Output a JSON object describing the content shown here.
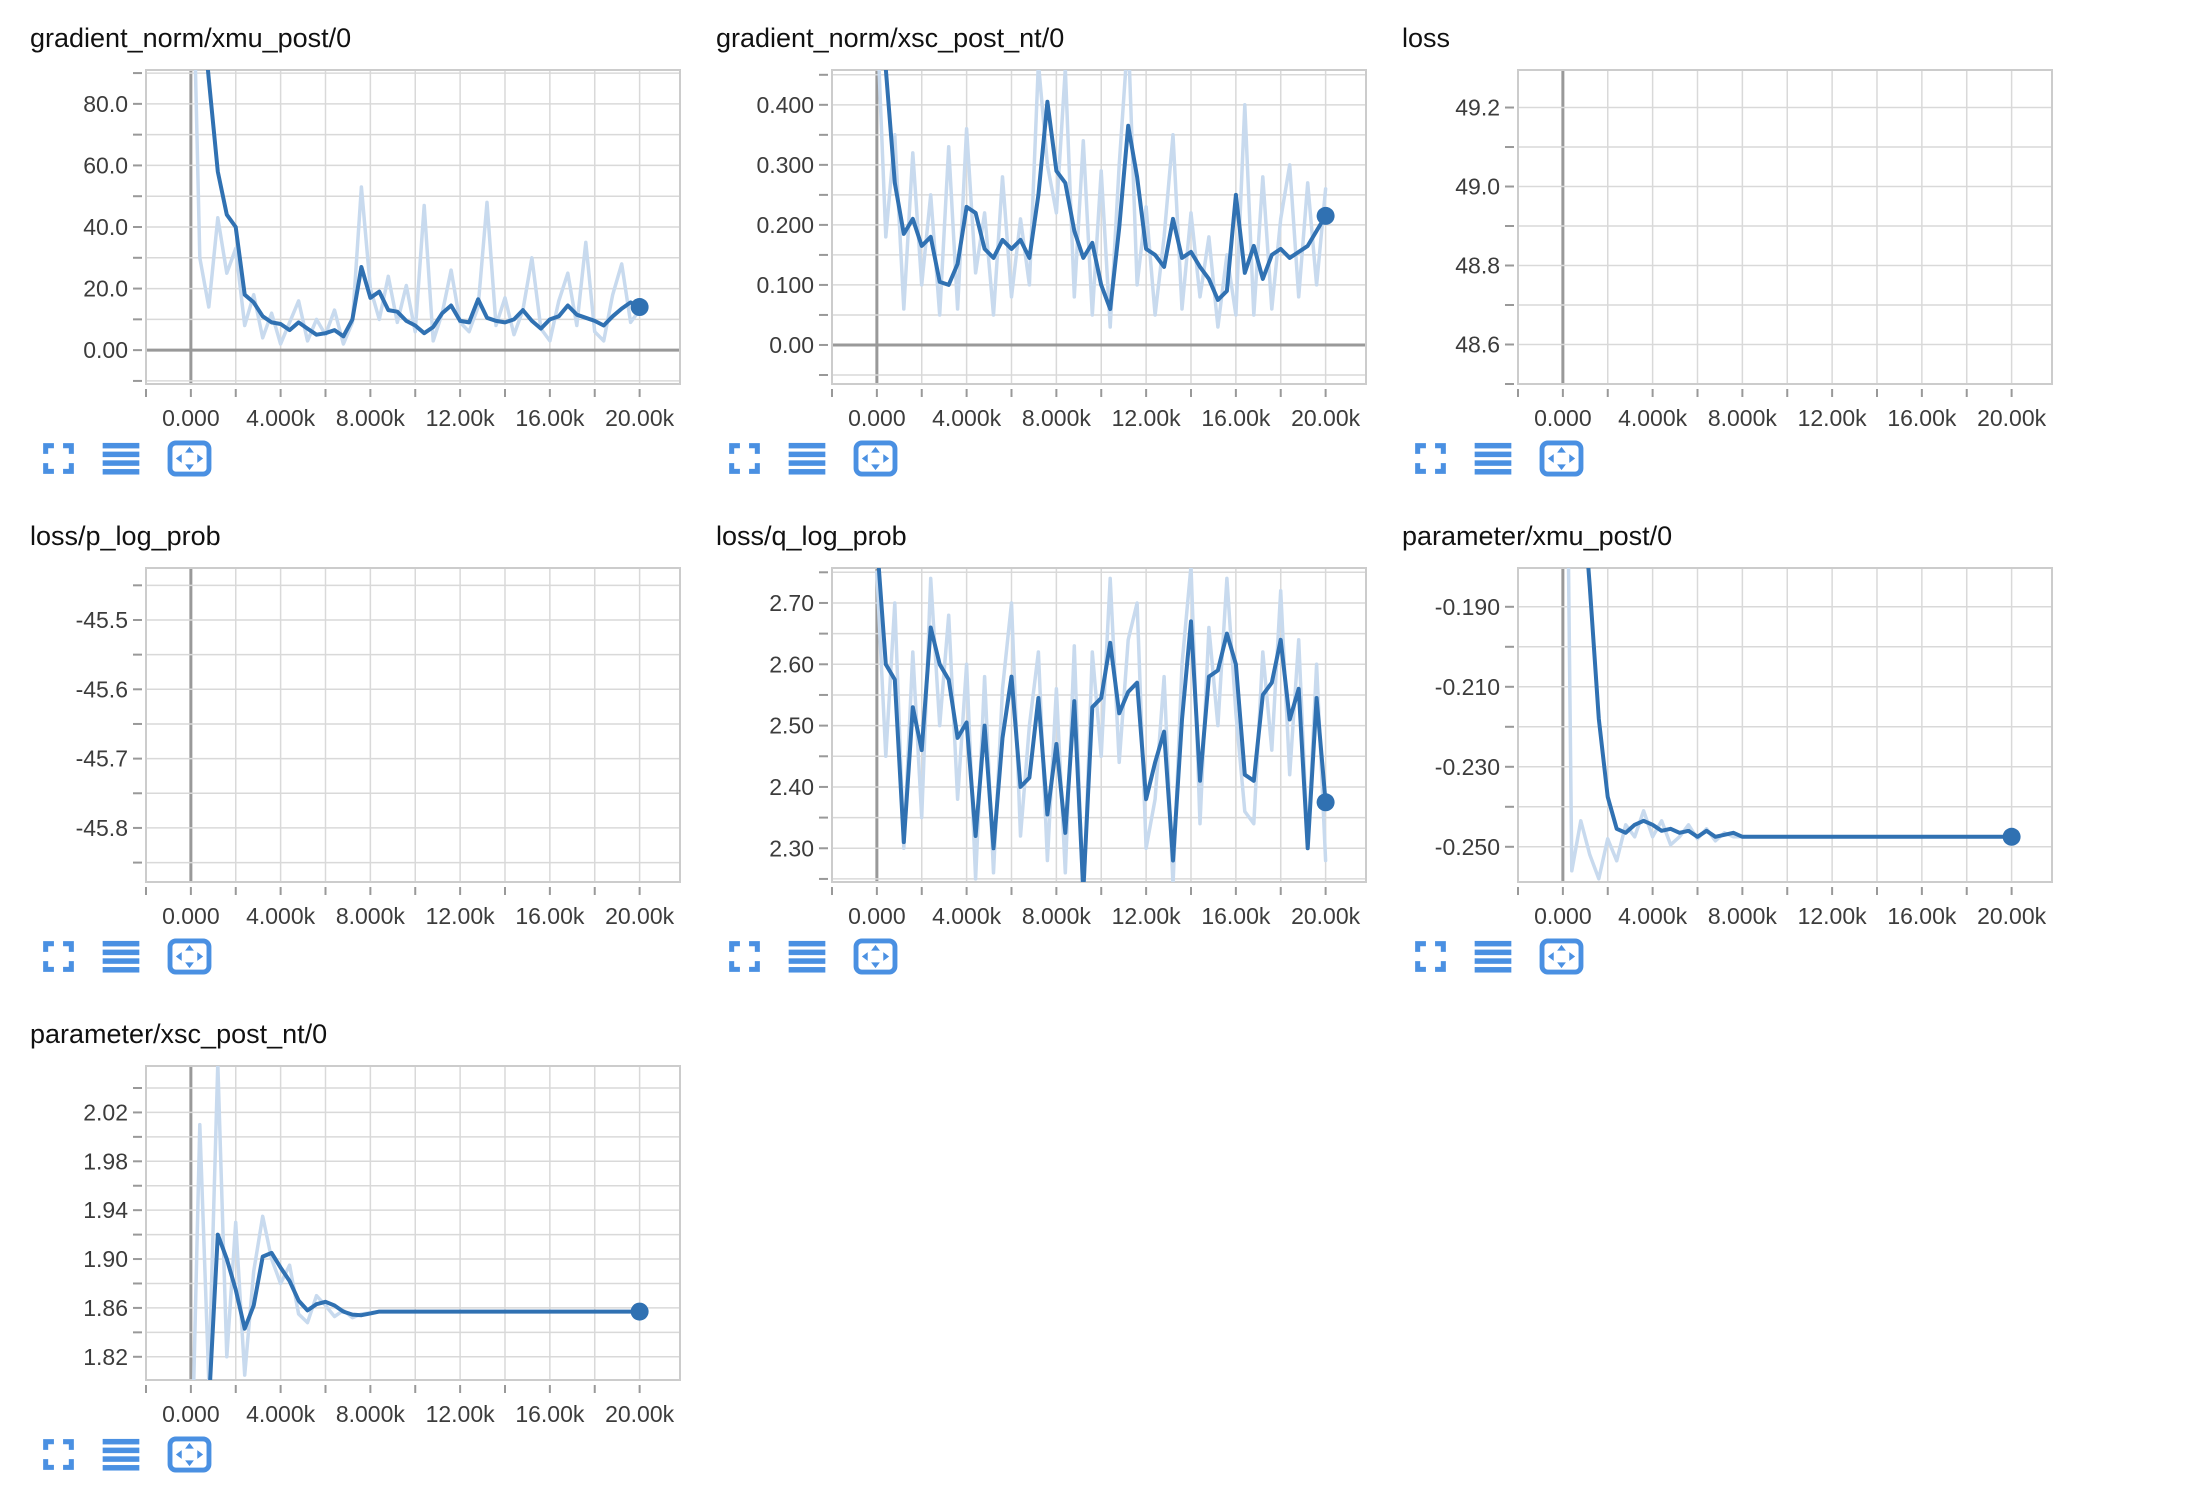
{
  "colors": {
    "smoothed_line": "#3071b2",
    "raw_line": "#c8daee",
    "grid": "#d9d9d9",
    "border": "#cccccc",
    "zero_axis": "#999999",
    "tick": "#999999",
    "tick_label": "#3c3c3c",
    "title_text": "#111111",
    "icon_blue": "#4a90e2",
    "background": "#ffffff"
  },
  "x_axis": {
    "domain": [
      -2000,
      21800
    ],
    "grid_step": 2000,
    "ticks": [
      {
        "v": 0,
        "label": "0.000"
      },
      {
        "v": 4000,
        "label": "4.000k"
      },
      {
        "v": 8000,
        "label": "8.000k"
      },
      {
        "v": 12000,
        "label": "12.00k"
      },
      {
        "v": 16000,
        "label": "16.00k"
      },
      {
        "v": 20000,
        "label": "20.00k"
      }
    ]
  },
  "chart_footer": {
    "icons": [
      {
        "name": "fullscreen-icon"
      },
      {
        "name": "horizontal-lines-icon"
      },
      {
        "name": "fit-domain-icon"
      }
    ]
  },
  "chart_data": [
    {
      "type": "line",
      "title": "gradient_norm/xmu_post/0",
      "xlabel": "",
      "ylabel": "",
      "x": {
        "start": 0,
        "step": 400
      },
      "y_domain": [
        -11,
        91
      ],
      "y_minor_step": 10,
      "zero_y_line": true,
      "end_dot": true,
      "y_ticks": [
        {
          "v": 0,
          "label": "0.00"
        },
        {
          "v": 20,
          "label": "20.0"
        },
        {
          "v": 40,
          "label": "40.0"
        },
        {
          "v": 60,
          "label": "60.0"
        },
        {
          "v": 80,
          "label": "80.0"
        }
      ],
      "series": [
        {
          "name": "raw",
          "values": [
            155,
            30,
            14,
            43,
            25,
            33,
            8,
            18,
            4,
            12,
            2,
            9,
            16,
            3,
            10,
            5,
            13,
            2,
            9,
            53,
            20,
            10,
            24,
            9,
            21,
            6,
            47,
            3,
            12,
            26,
            9,
            6,
            14,
            48,
            8,
            17,
            5,
            13,
            30,
            7,
            3,
            16,
            25,
            8,
            35,
            6,
            3,
            18,
            28,
            9,
            13
          ]
        },
        {
          "name": "smoothed",
          "values": [
            170,
            120,
            88,
            58,
            44,
            40,
            18,
            15.5,
            11,
            9,
            8.5,
            6.5,
            9,
            7,
            5,
            5.5,
            6.5,
            4.5,
            10,
            27,
            17,
            19,
            13,
            12.5,
            9.5,
            8,
            5.5,
            7.5,
            12,
            14.5,
            9.5,
            9,
            16.5,
            10.5,
            9.5,
            9,
            10,
            13,
            9.5,
            7,
            10,
            11,
            14.5,
            11.5,
            10.5,
            9.5,
            8,
            11,
            13.5,
            15.5,
            14
          ]
        }
      ]
    },
    {
      "type": "line",
      "title": "gradient_norm/xsc_post_nt/0",
      "xlabel": "",
      "ylabel": "",
      "x": {
        "start": 0,
        "step": 400
      },
      "y_domain": [
        -0.065,
        0.458
      ],
      "y_minor_step": 0.05,
      "zero_y_line": true,
      "end_dot": true,
      "y_ticks": [
        {
          "v": 0,
          "label": "0.00"
        },
        {
          "v": 0.1,
          "label": "0.100"
        },
        {
          "v": 0.2,
          "label": "0.200"
        },
        {
          "v": 0.3,
          "label": "0.300"
        },
        {
          "v": 0.4,
          "label": "0.400"
        }
      ],
      "series": [
        {
          "name": "raw",
          "values": [
            0.55,
            0.18,
            0.35,
            0.06,
            0.32,
            0.1,
            0.25,
            0.05,
            0.33,
            0.06,
            0.36,
            0.12,
            0.22,
            0.05,
            0.28,
            0.08,
            0.21,
            0.1,
            0.47,
            0.3,
            0.22,
            0.46,
            0.08,
            0.34,
            0.05,
            0.29,
            0.03,
            0.3,
            0.52,
            0.1,
            0.23,
            0.05,
            0.18,
            0.35,
            0.06,
            0.22,
            0.08,
            0.18,
            0.03,
            0.15,
            0.05,
            0.4,
            0.05,
            0.28,
            0.06,
            0.21,
            0.3,
            0.08,
            0.27,
            0.1,
            0.26
          ]
        },
        {
          "name": "smoothed",
          "values": [
            0.62,
            0.46,
            0.27,
            0.185,
            0.21,
            0.165,
            0.18,
            0.105,
            0.1,
            0.135,
            0.23,
            0.22,
            0.16,
            0.145,
            0.175,
            0.16,
            0.175,
            0.145,
            0.25,
            0.405,
            0.29,
            0.27,
            0.19,
            0.145,
            0.17,
            0.1,
            0.06,
            0.195,
            0.365,
            0.28,
            0.16,
            0.15,
            0.13,
            0.21,
            0.145,
            0.155,
            0.13,
            0.11,
            0.075,
            0.09,
            0.25,
            0.12,
            0.165,
            0.11,
            0.15,
            0.16,
            0.145,
            0.155,
            0.165,
            0.19,
            0.215
          ]
        }
      ]
    },
    {
      "type": "line",
      "title": "loss",
      "xlabel": "",
      "ylabel": "",
      "x": {
        "start": 0,
        "step": 400
      },
      "y_domain": [
        48.5,
        49.295
      ],
      "y_minor_step": 0.1,
      "zero_y_line": false,
      "end_dot": false,
      "y_ticks": [
        {
          "v": 48.6,
          "label": "48.6"
        },
        {
          "v": 48.8,
          "label": "48.8"
        },
        {
          "v": 49.0,
          "label": "49.0"
        },
        {
          "v": 49.2,
          "label": "49.2"
        }
      ],
      "series": [
        {
          "name": "raw",
          "values": []
        },
        {
          "name": "smoothed",
          "values": []
        }
      ]
    },
    {
      "type": "line",
      "title": "loss/p_log_prob",
      "xlabel": "",
      "ylabel": "",
      "x": {
        "start": 0,
        "step": 400
      },
      "y_domain": [
        -45.878,
        -45.425
      ],
      "y_minor_step": 0.05,
      "zero_y_line": false,
      "end_dot": false,
      "y_ticks": [
        {
          "v": -45.8,
          "label": "-45.8"
        },
        {
          "v": -45.7,
          "label": "-45.7"
        },
        {
          "v": -45.6,
          "label": "-45.6"
        },
        {
          "v": -45.5,
          "label": "-45.5"
        }
      ],
      "series": [
        {
          "name": "raw",
          "values": []
        },
        {
          "name": "smoothed",
          "values": []
        }
      ]
    },
    {
      "type": "line",
      "title": "loss/q_log_prob",
      "xlabel": "",
      "ylabel": "",
      "x": {
        "start": 0,
        "step": 400
      },
      "y_domain": [
        2.245,
        2.757
      ],
      "y_minor_step": 0.05,
      "zero_y_line": false,
      "end_dot": true,
      "y_ticks": [
        {
          "v": 2.3,
          "label": "2.30"
        },
        {
          "v": 2.4,
          "label": "2.40"
        },
        {
          "v": 2.5,
          "label": "2.50"
        },
        {
          "v": 2.6,
          "label": "2.60"
        },
        {
          "v": 2.7,
          "label": "2.70"
        }
      ],
      "series": [
        {
          "name": "raw",
          "values": [
            2.75,
            2.45,
            2.7,
            2.3,
            2.62,
            2.35,
            2.74,
            2.5,
            2.68,
            2.38,
            2.6,
            2.25,
            2.58,
            2.26,
            2.56,
            2.7,
            2.32,
            2.5,
            2.62,
            2.28,
            2.56,
            2.26,
            2.63,
            2.2,
            2.62,
            2.45,
            2.74,
            2.44,
            2.64,
            2.7,
            2.3,
            2.38,
            2.58,
            2.24,
            2.6,
            2.76,
            2.34,
            2.66,
            2.5,
            2.74,
            2.52,
            2.36,
            2.34,
            2.62,
            2.46,
            2.72,
            2.42,
            2.64,
            2.3,
            2.6,
            2.28
          ]
        },
        {
          "name": "smoothed",
          "values": [
            2.8,
            2.6,
            2.575,
            2.31,
            2.53,
            2.46,
            2.66,
            2.6,
            2.575,
            2.48,
            2.505,
            2.32,
            2.5,
            2.3,
            2.48,
            2.58,
            2.4,
            2.415,
            2.545,
            2.355,
            2.47,
            2.325,
            2.54,
            2.23,
            2.53,
            2.545,
            2.635,
            2.52,
            2.555,
            2.57,
            2.38,
            2.44,
            2.49,
            2.28,
            2.51,
            2.67,
            2.41,
            2.58,
            2.59,
            2.65,
            2.6,
            2.42,
            2.41,
            2.55,
            2.57,
            2.64,
            2.51,
            2.56,
            2.3,
            2.545,
            2.375
          ]
        }
      ]
    },
    {
      "type": "line",
      "title": "parameter/xmu_post/0",
      "xlabel": "",
      "ylabel": "",
      "x": {
        "start": 0,
        "step": 400
      },
      "y_domain": [
        -0.2588,
        -0.1803
      ],
      "y_minor_step": 0.01,
      "zero_y_line": false,
      "end_dot": true,
      "y_ticks": [
        {
          "v": -0.25,
          "label": "-0.250"
        },
        {
          "v": -0.23,
          "label": "-0.230"
        },
        {
          "v": -0.21,
          "label": "-0.210"
        },
        {
          "v": -0.19,
          "label": "-0.190"
        }
      ],
      "series": [
        {
          "name": "raw",
          "values": [
            -0.05,
            -0.256,
            -0.2435,
            -0.252,
            -0.258,
            -0.248,
            -0.2535,
            -0.2445,
            -0.2475,
            -0.241,
            -0.2475,
            -0.2435,
            -0.2495,
            -0.2475,
            -0.2445,
            -0.248,
            -0.2455,
            -0.2485,
            -0.2465,
            -0.2475,
            -0.2475,
            -0.2475,
            -0.2475,
            -0.2475,
            -0.2475,
            -0.2475,
            -0.2475,
            -0.2475,
            -0.2475,
            -0.2475,
            -0.2475,
            -0.2475,
            -0.2475,
            -0.2475,
            -0.2475,
            -0.2475,
            -0.2475,
            -0.2475,
            -0.2475,
            -0.2475,
            -0.2475,
            -0.2475,
            -0.2475,
            -0.2475,
            -0.2475,
            -0.2475,
            -0.2475,
            -0.2475,
            -0.2475,
            -0.2475,
            -0.2475
          ]
        },
        {
          "name": "smoothed",
          "values": [
            -0.1,
            -0.12,
            -0.155,
            -0.185,
            -0.218,
            -0.2375,
            -0.2455,
            -0.2465,
            -0.2445,
            -0.2435,
            -0.2445,
            -0.246,
            -0.2455,
            -0.2465,
            -0.246,
            -0.2475,
            -0.246,
            -0.2475,
            -0.247,
            -0.2465,
            -0.2475,
            -0.2475,
            -0.2475,
            -0.2475,
            -0.2475,
            -0.2475,
            -0.2475,
            -0.2475,
            -0.2475,
            -0.2475,
            -0.2475,
            -0.2475,
            -0.2475,
            -0.2475,
            -0.2475,
            -0.2475,
            -0.2475,
            -0.2475,
            -0.2475,
            -0.2475,
            -0.2475,
            -0.2475,
            -0.2475,
            -0.2475,
            -0.2475,
            -0.2475,
            -0.2475,
            -0.2475,
            -0.2475,
            -0.2475,
            -0.2475
          ]
        }
      ]
    },
    {
      "type": "line",
      "title": "parameter/xsc_post_nt/0",
      "xlabel": "",
      "ylabel": "",
      "x": {
        "start": 0,
        "step": 400
      },
      "y_domain": [
        1.801,
        2.058
      ],
      "y_minor_step": 0.02,
      "zero_y_line": false,
      "end_dot": true,
      "y_ticks": [
        {
          "v": 1.82,
          "label": "1.82"
        },
        {
          "v": 1.86,
          "label": "1.86"
        },
        {
          "v": 1.9,
          "label": "1.90"
        },
        {
          "v": 1.94,
          "label": "1.94"
        },
        {
          "v": 1.98,
          "label": "1.98"
        },
        {
          "v": 2.02,
          "label": "2.02"
        }
      ],
      "series": [
        {
          "name": "raw",
          "values": [
            1.7,
            2.01,
            1.8,
            2.06,
            1.82,
            1.93,
            1.805,
            1.89,
            1.935,
            1.9,
            1.88,
            1.895,
            1.855,
            1.848,
            1.87,
            1.862,
            1.853,
            1.858,
            1.852,
            1.855,
            1.856,
            1.857,
            1.857,
            1.857,
            1.857,
            1.857,
            1.857,
            1.857,
            1.857,
            1.857,
            1.857,
            1.857,
            1.857,
            1.857,
            1.857,
            1.857,
            1.857,
            1.857,
            1.857,
            1.857,
            1.857,
            1.857,
            1.857,
            1.857,
            1.857,
            1.857,
            1.857,
            1.857,
            1.857,
            1.857,
            1.857
          ]
        },
        {
          "name": "smoothed",
          "values": [
            1.7,
            1.72,
            1.78,
            1.92,
            1.9,
            1.875,
            1.843,
            1.862,
            1.902,
            1.905,
            1.893,
            1.882,
            1.866,
            1.858,
            1.863,
            1.865,
            1.862,
            1.857,
            1.8545,
            1.854,
            1.8555,
            1.857,
            1.857,
            1.857,
            1.857,
            1.857,
            1.857,
            1.857,
            1.857,
            1.857,
            1.857,
            1.857,
            1.857,
            1.857,
            1.857,
            1.857,
            1.857,
            1.857,
            1.857,
            1.857,
            1.857,
            1.857,
            1.857,
            1.857,
            1.857,
            1.857,
            1.857,
            1.857,
            1.857,
            1.857,
            1.857
          ]
        }
      ]
    }
  ]
}
